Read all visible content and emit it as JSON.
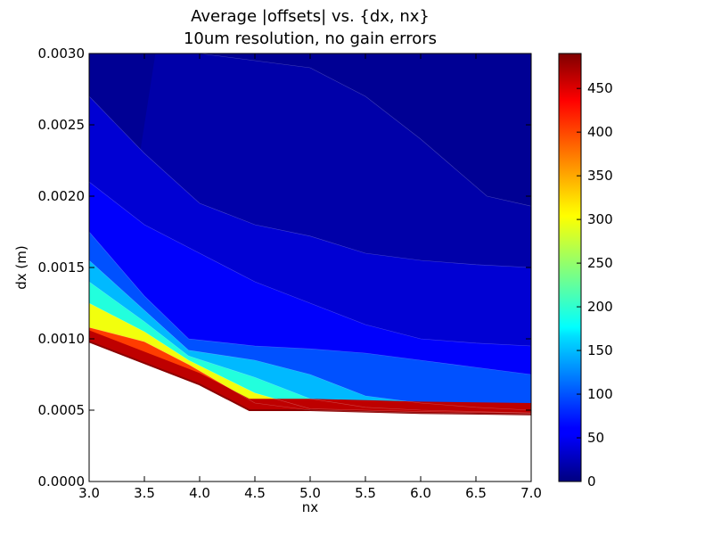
{
  "chart_data": {
    "type": "contour",
    "title": "Average |offsets| vs. {dx, nx}",
    "subtitle": "10um resolution, no gain errors",
    "xlabel": "nx",
    "ylabel": "dx (m)",
    "xlim": [
      3.0,
      7.0
    ],
    "ylim": [
      0.0,
      0.003
    ],
    "x_ticks": [
      "3.0",
      "3.5",
      "4.0",
      "4.5",
      "5.0",
      "5.5",
      "6.0",
      "6.5",
      "7.0"
    ],
    "y_ticks": [
      "0.0000",
      "0.0005",
      "0.0010",
      "0.0015",
      "0.0020",
      "0.0025",
      "0.0030"
    ],
    "colorbar": {
      "colormap": "jet",
      "range": [
        0,
        490
      ],
      "ticks": [
        "0",
        "50",
        "100",
        "150",
        "200",
        "250",
        "300",
        "350",
        "400",
        "450"
      ]
    },
    "grid": false,
    "legend": "none",
    "lower_boundary": {
      "nx": [
        3.0,
        4.0,
        4.45,
        5.0,
        6.0,
        7.0
      ],
      "dx": [
        0.00098,
        0.00068,
        0.0005,
        0.0005,
        0.00048,
        0.00047
      ]
    },
    "contour_levels": [
      {
        "level": 20,
        "nx": [
          3.6,
          4.0,
          4.5,
          5.0,
          5.5,
          6.0,
          6.6,
          7.0
        ],
        "dx": [
          0.003,
          0.003,
          0.00295,
          0.0029,
          0.0027,
          0.0024,
          0.002,
          0.00193
        ]
      },
      {
        "level": 40,
        "nx": [
          3.0,
          3.5,
          4.0,
          4.5,
          5.0,
          5.5,
          6.0,
          6.5,
          7.0
        ],
        "dx": [
          0.0027,
          0.0023,
          0.00195,
          0.0018,
          0.00172,
          0.0016,
          0.00155,
          0.00152,
          0.0015
        ]
      },
      {
        "level": 60,
        "nx": [
          3.0,
          3.5,
          4.0,
          4.5,
          5.0,
          5.5,
          6.0,
          6.5,
          7.0
        ],
        "dx": [
          0.0021,
          0.0018,
          0.0016,
          0.0014,
          0.00125,
          0.0011,
          0.001,
          0.00097,
          0.00095
        ]
      },
      {
        "level": 100,
        "nx": [
          3.0,
          3.5,
          3.9,
          4.5,
          5.0,
          5.5,
          6.0,
          6.5,
          7.0
        ],
        "dx": [
          0.00175,
          0.0013,
          0.001,
          0.00095,
          0.00093,
          0.0009,
          0.00085,
          0.0008,
          0.00075
        ]
      },
      {
        "level": 150,
        "nx": [
          3.0,
          3.5,
          3.9,
          4.5,
          5.0,
          5.5,
          6.0,
          6.5,
          7.0
        ],
        "dx": [
          0.00155,
          0.0012,
          0.00092,
          0.00085,
          0.00075,
          0.0006,
          0.00055,
          0.00052,
          0.0005
        ]
      },
      {
        "level": 200,
        "nx": [
          3.0,
          3.5,
          3.9,
          4.5,
          5.0,
          5.5,
          6.0,
          6.5,
          7.0
        ],
        "dx": [
          0.0014,
          0.00112,
          0.00088,
          0.00073,
          0.00058,
          0.00052,
          0.0005,
          0.00049,
          0.00048
        ]
      },
      {
        "level": 300,
        "nx": [
          3.0,
          3.5,
          3.9,
          4.5,
          5.0,
          6.0,
          7.0
        ],
        "dx": [
          0.00125,
          0.00105,
          0.00085,
          0.00062,
          0.00051,
          0.00049,
          0.00048
        ]
      },
      {
        "level": 400,
        "nx": [
          3.0,
          3.5,
          3.9,
          4.5,
          5.0,
          6.0,
          7.0
        ],
        "dx": [
          0.00108,
          0.00098,
          0.00082,
          0.00055,
          0.0005,
          0.00048,
          0.00047
        ]
      }
    ]
  }
}
